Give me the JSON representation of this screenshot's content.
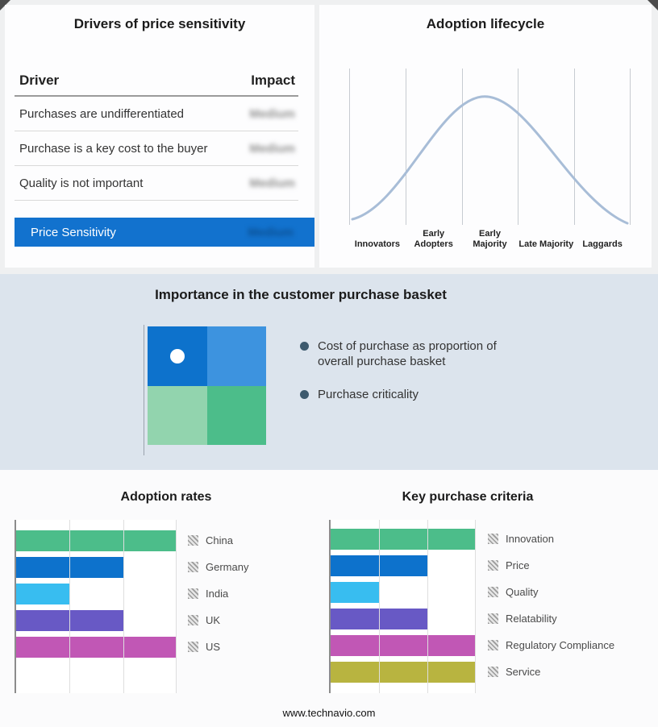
{
  "footer": {
    "url": "www.technavio.com"
  },
  "drivers_panel": {
    "title": "Drivers of price sensitivity",
    "columns": {
      "driver": "Driver",
      "impact": "Impact"
    },
    "rows": [
      {
        "driver": "Purchases are undifferentiated",
        "impact": "Medium",
        "impact_obscured": true
      },
      {
        "driver": "Purchase is a key cost to the buyer",
        "impact": "Medium",
        "impact_obscured": true
      },
      {
        "driver": "Quality is not important",
        "impact": "Medium",
        "impact_obscured": true
      }
    ],
    "summary": {
      "label": "Price Sensitivity",
      "impact": "Medium",
      "impact_obscured": true,
      "bar_color": "#1272ce"
    }
  },
  "basket_panel": {
    "title": "Importance in the customer purchase basket",
    "bullets": [
      "Cost of purchase as proportion of overall purchase basket",
      "Purchase criticality"
    ],
    "bullet_color": "#3d5a6e",
    "quadrant": {
      "top_left": "#0d72cc",
      "top_right": "#3d93df",
      "bottom_left": "#92d4ae",
      "bottom_right": "#4cbd8a"
    }
  },
  "chart_data": [
    {
      "id": "adoption-lifecycle",
      "type": "line",
      "shape": "bell-curve",
      "title": "Adoption lifecycle",
      "categories": [
        "Innovators",
        "Early Adopters",
        "Early Majority",
        "Late Majority",
        "Laggards"
      ],
      "curve_color": "#a8bdd7",
      "grid": true,
      "legend_position": "none"
    },
    {
      "id": "adoption-rates",
      "type": "bar",
      "orientation": "horizontal",
      "title": "Adoption rates",
      "categories": [
        "China",
        "Germany",
        "India",
        "UK",
        "US"
      ],
      "values": [
        3,
        2,
        1,
        2,
        3
      ],
      "xlim": [
        0,
        3
      ],
      "colors": [
        "#4cbd8a",
        "#0d72cc",
        "#38bdf0",
        "#6859c5",
        "#c157b5"
      ],
      "grid": true,
      "legend_position": "right"
    },
    {
      "id": "key-purchase-criteria",
      "type": "bar",
      "orientation": "horizontal",
      "title": "Key purchase criteria",
      "categories": [
        "Innovation",
        "Price",
        "Quality",
        "Relatability",
        "Regulatory Compliance",
        "Service"
      ],
      "values": [
        3,
        2,
        1,
        2,
        3,
        3
      ],
      "xlim": [
        0,
        3
      ],
      "colors": [
        "#4cbd8a",
        "#0d72cc",
        "#38bdf0",
        "#6859c5",
        "#c157b5",
        "#b8b440"
      ],
      "grid": true,
      "legend_position": "right"
    }
  ]
}
